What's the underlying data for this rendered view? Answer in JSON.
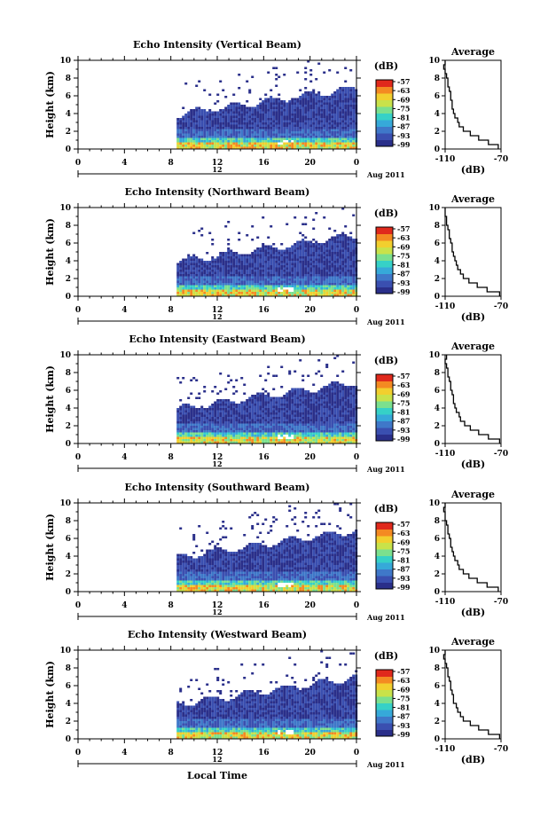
{
  "figure": {
    "xlabel": "Local Time",
    "date_label": "Aug 2011",
    "colorbar_unit": "(dB)",
    "colorbar_ticks": [
      "-57",
      "-63",
      "-69",
      "-75",
      "-81",
      "-87",
      "-93",
      "-99"
    ],
    "avg_title": "Average",
    "avg_xlabel": "(dB)",
    "time_ticks": [
      "0",
      "4",
      "8",
      "12",
      "16",
      "20",
      "0"
    ],
    "date_tick": "12"
  },
  "colors": {
    "colormap": [
      "#2a2f8a",
      "#3a4fb0",
      "#3f78c9",
      "#36a9d9",
      "#36d1c7",
      "#7be08e",
      "#c9e24a",
      "#f2cf2e",
      "#f48a22",
      "#e0291c"
    ],
    "axis": "#000000"
  },
  "chart_data": [
    {
      "type": "heatmap",
      "title": "Echo Intensity (Vertical Beam)",
      "xlabel": "",
      "ylabel": "Height (km)",
      "xlim": [
        0,
        24
      ],
      "ylim": [
        0,
        10
      ],
      "yticks": [
        "0",
        "2",
        "4",
        "6",
        "8",
        "10"
      ],
      "data_start_hour": 8.5,
      "colorbar_range_db": [
        -99,
        -57
      ],
      "average_profile": {
        "title": "Average",
        "xlabel": "(dB)",
        "xlim": [
          -110,
          -70
        ],
        "xticks": [
          "-110",
          "-70"
        ],
        "heights_km": [
          0,
          0.5,
          1,
          1.5,
          2,
          2.5,
          3,
          3.5,
          4,
          4.5,
          5,
          5.5,
          6,
          6.5,
          7,
          7.5,
          8,
          8.5,
          9,
          9.5
        ],
        "db": [
          -72,
          -79,
          -86,
          -92,
          -97,
          -100,
          -101,
          -103,
          -104,
          -105,
          -105,
          -106,
          -106,
          -107,
          -108,
          -108,
          -109,
          -110,
          -111,
          -110
        ]
      }
    },
    {
      "type": "heatmap",
      "title": "Echo Intensity (Northward Beam)",
      "xlabel": "",
      "ylabel": "Height (km)",
      "xlim": [
        0,
        24
      ],
      "ylim": [
        0,
        10
      ],
      "yticks": [
        "0",
        "2",
        "4",
        "6",
        "8",
        "10"
      ],
      "data_start_hour": 8.5,
      "colorbar_range_db": [
        -99,
        -57
      ],
      "average_profile": {
        "title": "Average",
        "xlabel": "(dB)",
        "xlim": [
          -110,
          -70
        ],
        "xticks": [
          "-110",
          "-70"
        ],
        "heights_km": [
          0,
          0.5,
          1,
          1.5,
          2,
          2.5,
          3,
          3.5,
          4,
          4.5,
          5,
          5.5,
          6,
          6.5,
          7,
          7.5,
          8,
          8.5,
          9,
          9.5
        ],
        "db": [
          -71,
          -80,
          -87,
          -93,
          -97,
          -99,
          -101,
          -102,
          -103,
          -104,
          -105,
          -105,
          -106,
          -107,
          -107,
          -108,
          -109,
          -109,
          -110,
          -110
        ]
      }
    },
    {
      "type": "heatmap",
      "title": "Echo Intensity (Eastward Beam)",
      "xlabel": "",
      "ylabel": "Height (km)",
      "xlim": [
        0,
        24
      ],
      "ylim": [
        0,
        10
      ],
      "yticks": [
        "0",
        "2",
        "4",
        "6",
        "8",
        "10"
      ],
      "data_start_hour": 8.5,
      "colorbar_range_db": [
        -99,
        -57
      ],
      "average_profile": {
        "title": "Average",
        "xlabel": "(dB)",
        "xlim": [
          -110,
          -70
        ],
        "xticks": [
          "-110",
          "-70"
        ],
        "heights_km": [
          0,
          0.5,
          1,
          1.5,
          2,
          2.5,
          3,
          3.5,
          4,
          4.5,
          5,
          5.5,
          6,
          6.5,
          7,
          7.5,
          8,
          8.5,
          9,
          9.5
        ],
        "db": [
          -71,
          -79,
          -86,
          -92,
          -96,
          -99,
          -100,
          -102,
          -103,
          -104,
          -104,
          -105,
          -106,
          -106,
          -107,
          -108,
          -108,
          -109,
          -110,
          -109
        ]
      }
    },
    {
      "type": "heatmap",
      "title": "Echo Intensity (Southward Beam)",
      "xlabel": "",
      "ylabel": "Height (km)",
      "xlim": [
        0,
        24
      ],
      "ylim": [
        0,
        10
      ],
      "yticks": [
        "0",
        "2",
        "4",
        "6",
        "8",
        "10"
      ],
      "data_start_hour": 8.5,
      "colorbar_range_db": [
        -99,
        -57
      ],
      "average_profile": {
        "title": "Average",
        "xlabel": "(dB)",
        "xlim": [
          -110,
          -70
        ],
        "xticks": [
          "-110",
          "-70"
        ],
        "heights_km": [
          0,
          0.5,
          1,
          1.5,
          2,
          2.5,
          3,
          3.5,
          4,
          4.5,
          5,
          5.5,
          6,
          6.5,
          7,
          7.5,
          8,
          8.5,
          9,
          9.5
        ],
        "db": [
          -72,
          -80,
          -87,
          -93,
          -97,
          -100,
          -101,
          -103,
          -104,
          -105,
          -106,
          -106,
          -107,
          -108,
          -108,
          -109,
          -110,
          -110,
          -111,
          -110
        ]
      }
    },
    {
      "type": "heatmap",
      "title": "Echo Intensity (Westward Beam)",
      "xlabel": "",
      "ylabel": "Height (km)",
      "xlim": [
        0,
        24
      ],
      "ylim": [
        0,
        10
      ],
      "yticks": [
        "0",
        "2",
        "4",
        "6",
        "8",
        "10"
      ],
      "data_start_hour": 8.5,
      "colorbar_range_db": [
        -99,
        -57
      ],
      "average_profile": {
        "title": "Average",
        "xlabel": "(dB)",
        "xlim": [
          -110,
          -70
        ],
        "xticks": [
          "-110",
          "-70"
        ],
        "heights_km": [
          0,
          0.5,
          1,
          1.5,
          2,
          2.5,
          3,
          3.5,
          4,
          4.5,
          5,
          5.5,
          6,
          6.5,
          7,
          7.5,
          8,
          8.5,
          9,
          9.5
        ],
        "db": [
          -71,
          -79,
          -86,
          -92,
          -97,
          -99,
          -101,
          -102,
          -104,
          -104,
          -105,
          -106,
          -106,
          -107,
          -108,
          -108,
          -109,
          -110,
          -111,
          -110
        ]
      }
    }
  ]
}
